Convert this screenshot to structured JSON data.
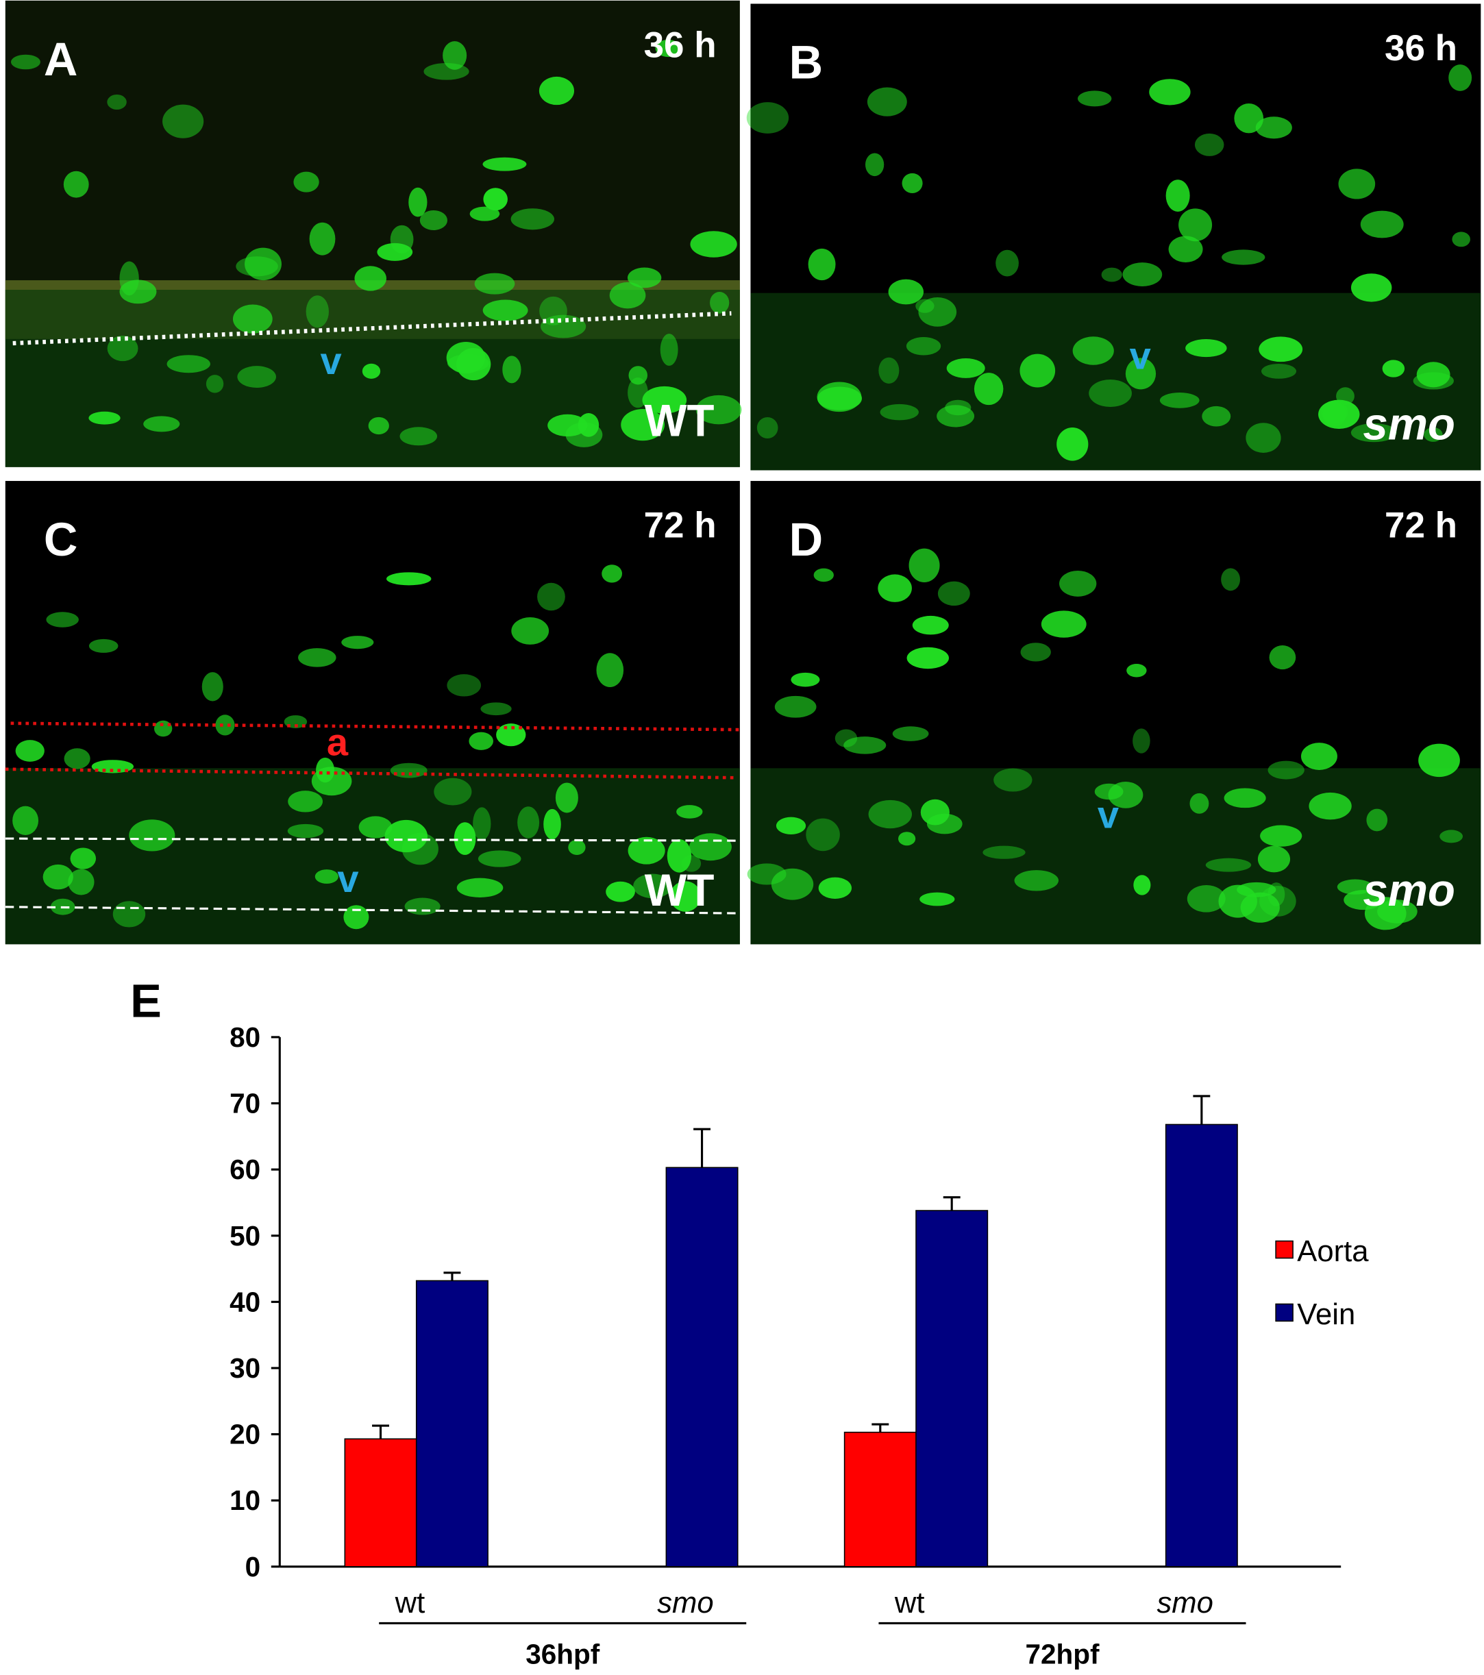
{
  "panels": [
    {
      "label": "A",
      "time": "36 h",
      "genotype": "WT",
      "markers": [
        "v"
      ]
    },
    {
      "label": "B",
      "time": "36 h",
      "genotype": "smo",
      "markers": [
        "v"
      ]
    },
    {
      "label": "C",
      "time": "72 h",
      "genotype": "WT",
      "markers": [
        "a",
        "v"
      ]
    },
    {
      "label": "D",
      "time": "72 h",
      "genotype": "smo",
      "markers": [
        "v"
      ]
    }
  ],
  "chart_data": {
    "type": "bar",
    "panel_label": "E",
    "categories": [
      "wt",
      "smo",
      "wt",
      "smo"
    ],
    "groups": [
      "36hpf",
      "72hpf"
    ],
    "series": [
      {
        "name": "Aorta",
        "color": "#ff0000",
        "values": [
          19.3,
          null,
          20.3,
          null
        ],
        "errors": [
          2,
          null,
          1.2,
          null
        ]
      },
      {
        "name": "Vein",
        "color": "#000080",
        "values": [
          43.2,
          60.3,
          53.8,
          66.8
        ],
        "errors": [
          1.2,
          5.8,
          2,
          4.3
        ]
      }
    ],
    "ylim": [
      0,
      80
    ],
    "yticks": [
      0,
      10,
      20,
      30,
      40,
      50,
      60,
      70,
      80
    ]
  }
}
